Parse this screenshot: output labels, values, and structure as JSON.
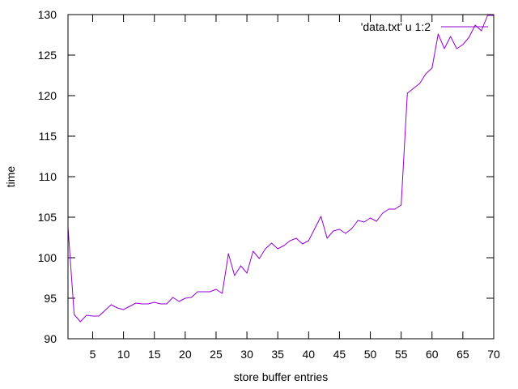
{
  "chart_data": {
    "type": "line",
    "title": "",
    "xlabel": "store buffer entries",
    "ylabel": "time",
    "xlim": [
      1,
      70
    ],
    "ylim": [
      90,
      130
    ],
    "xticks": [
      5,
      10,
      15,
      20,
      25,
      30,
      35,
      40,
      45,
      50,
      55,
      60,
      65,
      70
    ],
    "yticks": [
      90,
      95,
      100,
      105,
      110,
      115,
      120,
      125,
      130
    ],
    "grid": false,
    "legend_position": "top-right",
    "series": [
      {
        "name": "'data.txt' u 1:2",
        "color": "#9400d3",
        "x": [
          1,
          2,
          3,
          4,
          5,
          6,
          7,
          8,
          9,
          10,
          11,
          12,
          13,
          14,
          15,
          16,
          17,
          18,
          19,
          20,
          21,
          22,
          23,
          24,
          25,
          26,
          27,
          28,
          29,
          30,
          31,
          32,
          33,
          34,
          35,
          36,
          37,
          38,
          39,
          40,
          41,
          42,
          43,
          44,
          45,
          46,
          47,
          48,
          49,
          50,
          51,
          52,
          53,
          54,
          55,
          56,
          57,
          58,
          59,
          60,
          61,
          62,
          63,
          64,
          65,
          66,
          67,
          68,
          69,
          70
        ],
        "y": [
          103.8,
          93.0,
          92.1,
          92.9,
          92.8,
          92.8,
          93.5,
          94.2,
          93.8,
          93.6,
          94.0,
          94.4,
          94.3,
          94.3,
          94.5,
          94.3,
          94.3,
          95.1,
          94.6,
          95.0,
          95.1,
          95.8,
          95.8,
          95.8,
          96.1,
          95.6,
          100.5,
          97.8,
          99.0,
          98.1,
          100.8,
          99.9,
          101.1,
          101.8,
          101.1,
          101.5,
          102.1,
          102.4,
          101.7,
          102.1,
          103.6,
          105.1,
          102.4,
          103.3,
          103.5,
          103.0,
          103.6,
          104.6,
          104.4,
          104.9,
          104.5,
          105.5,
          106.0,
          106.0,
          106.5,
          120.3,
          120.9,
          121.5,
          122.7,
          123.4,
          127.6,
          125.8,
          127.3,
          125.8,
          126.3,
          127.2,
          128.7,
          128.0,
          129.9,
          129.9
        ]
      }
    ]
  }
}
